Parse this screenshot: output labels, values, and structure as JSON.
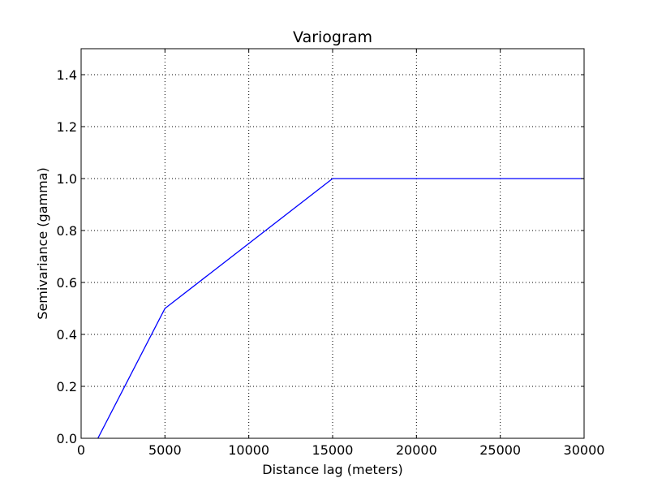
{
  "chart_data": {
    "type": "line",
    "title": "Variogram",
    "xlabel": "Distance lag (meters)",
    "ylabel": "Semivariance (gamma)",
    "xlim": [
      0,
      30000
    ],
    "ylim": [
      0,
      1.5
    ],
    "grid": true,
    "legend": "none",
    "xticks": [
      0,
      5000,
      10000,
      15000,
      20000,
      25000,
      30000
    ],
    "xtick_labels": [
      "0",
      "5000",
      "10000",
      "15000",
      "20000",
      "25000",
      "30000"
    ],
    "yticks": [
      0,
      0.2,
      0.4,
      0.6,
      0.8,
      1.0,
      1.2,
      1.4
    ],
    "ytick_labels": [
      "0.0",
      "0.2",
      "0.4",
      "0.6",
      "0.8",
      "1.0",
      "1.2",
      "1.4"
    ],
    "series": [
      {
        "x": [
          1000,
          5000,
          15000,
          30000
        ],
        "y": [
          0.0,
          0.5,
          1.0,
          1.0
        ],
        "color": "#0000ff"
      }
    ]
  }
}
